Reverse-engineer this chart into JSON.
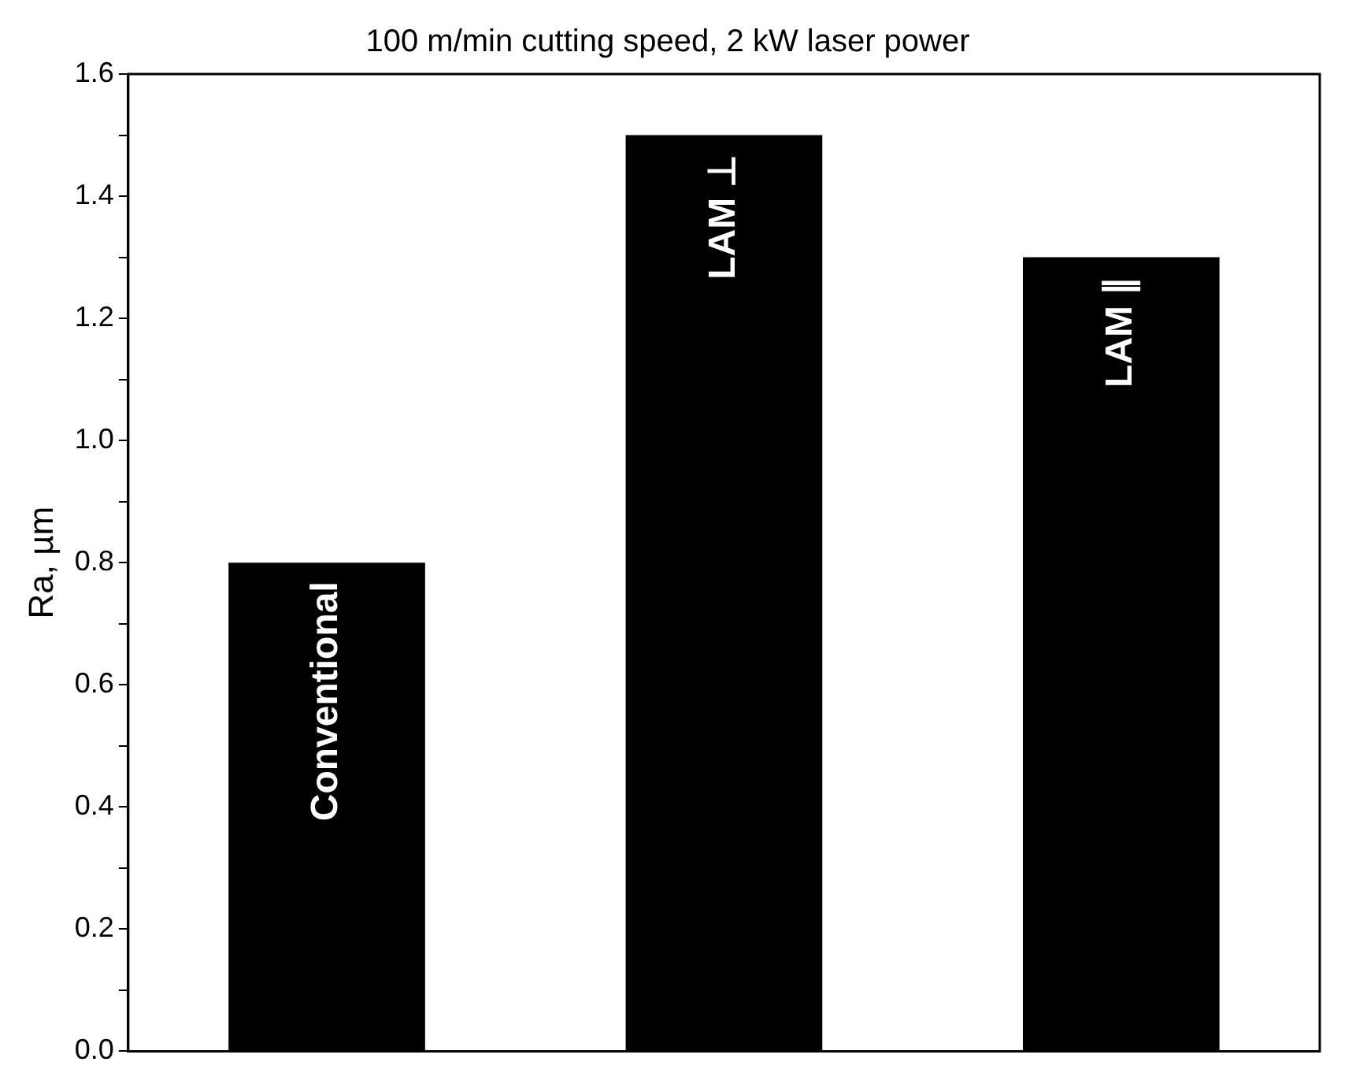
{
  "chart_data": {
    "type": "bar",
    "title": "100 m/min cutting speed, 2 kW laser power",
    "ylabel": "Ra, µm",
    "categories": [
      "Conventional",
      "LAM ⊥",
      "LAM ∥"
    ],
    "values": [
      0.8,
      1.5,
      1.3
    ],
    "color": "#000000",
    "ylim": [
      0,
      1.6
    ],
    "yticks": [
      {
        "value": 0,
        "label": "0.0"
      },
      {
        "value": 0.1,
        "label": null
      },
      {
        "value": 0.2,
        "label": "0.2"
      },
      {
        "value": 0.3,
        "label": null
      },
      {
        "value": 0.4,
        "label": "0.4"
      },
      {
        "value": 0.5,
        "label": null
      },
      {
        "value": 0.6,
        "label": "0.6"
      },
      {
        "value": 0.7,
        "label": null
      },
      {
        "value": 0.8,
        "label": "0.8"
      },
      {
        "value": 0.9,
        "label": null
      },
      {
        "value": 1.0,
        "label": "1.0"
      },
      {
        "value": 1.1,
        "label": null
      },
      {
        "value": 1.2,
        "label": "1.2"
      },
      {
        "value": 1.3,
        "label": null
      },
      {
        "value": 1.4,
        "label": "1.4"
      },
      {
        "value": 1.5,
        "label": null
      },
      {
        "value": 1.6,
        "label": "1.6"
      }
    ],
    "tick_labels": "y",
    "grid": false,
    "legend": false
  }
}
